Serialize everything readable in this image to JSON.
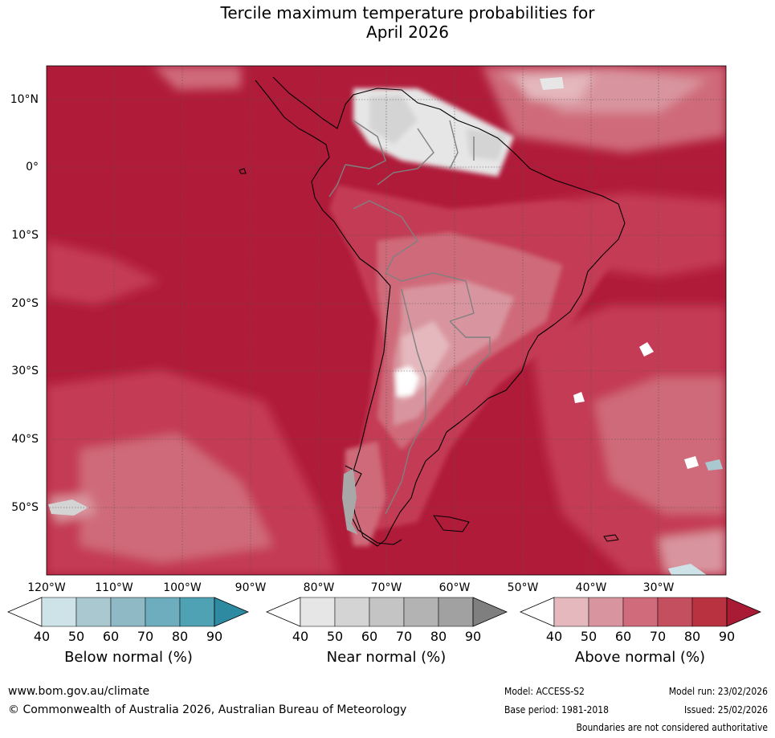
{
  "title": {
    "line1": "Tercile maximum temperature probabilities for",
    "line2": "April 2026"
  },
  "map": {
    "lat_labels": [
      "10°N",
      "0°",
      "10°S",
      "20°S",
      "30°S",
      "40°S",
      "50°S"
    ],
    "lon_labels": [
      "120°W",
      "110°W",
      "100°W",
      "90°W",
      "80°W",
      "70°W",
      "60°W",
      "50°W",
      "40°W",
      "30°W"
    ],
    "colors": {
      "above_dominant": "#b01b3a",
      "above_80": "#c43a55",
      "above_70": "#cf6b7a",
      "above_60": "#d9959f",
      "above_50": "#e4b8bd",
      "near_40": "#e6e6e6",
      "near_50": "#d4d4d4",
      "near_60": "#c4c4c4",
      "below_40": "#cde3e8",
      "below_50": "#a9c8cf",
      "land_border": "#808080",
      "coastline": "#000000"
    }
  },
  "legends": {
    "ticks": [
      "40",
      "50",
      "60",
      "70",
      "80",
      "90"
    ],
    "below": {
      "title": "Below normal (%)",
      "colors": [
        "#ffffff",
        "#cde3e8",
        "#a9c8cf",
        "#8eb9c5",
        "#6eadbd",
        "#4fa1b4",
        "#2e8aa0"
      ]
    },
    "near": {
      "title": "Near normal (%)",
      "colors": [
        "#ffffff",
        "#e6e6e6",
        "#d4d4d4",
        "#c4c4c4",
        "#b3b3b3",
        "#a1a1a1",
        "#7f7f7f"
      ]
    },
    "above": {
      "title": "Above normal (%)",
      "colors": [
        "#ffffff",
        "#e4b8bd",
        "#d9959f",
        "#cf6b7a",
        "#c4505f",
        "#b8323f",
        "#a91a34"
      ]
    }
  },
  "footer": {
    "website": "www.bom.gov.au/climate",
    "copyright": "© Commonwealth of Australia 2026, Australian Bureau of Meteorology",
    "model": "Model: ACCESS-S2",
    "model_run": "Model run: 23/02/2026",
    "base_period": "Base period: 1981-2018",
    "issued": "Issued: 25/02/2026",
    "disclaimer": "Boundaries are not considered authoritative"
  }
}
